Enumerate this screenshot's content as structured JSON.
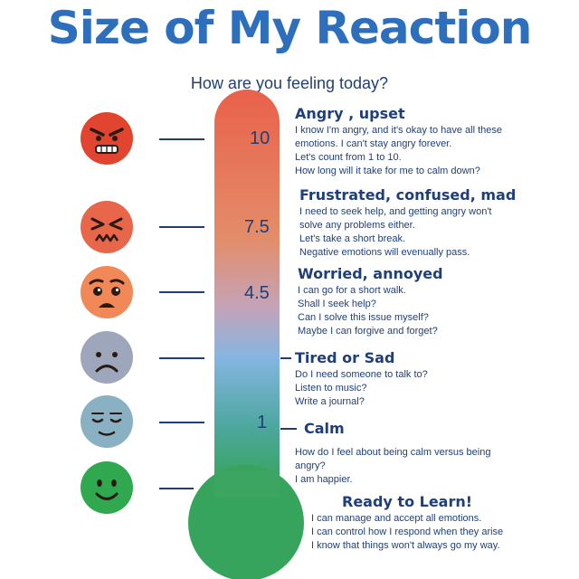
{
  "title": "Size of My Reaction",
  "subtitle": "How are you feeling today?",
  "levels": [
    {
      "number": "10",
      "face": "angry-face-icon",
      "heading": "Angry , upset",
      "lines": [
        "I know I'm angry, and it's okay to have all these",
        "emotions. I can't stay angry forever.",
        "Let's count from 1 to 10.",
        "How long will it take for me to calm down?"
      ]
    },
    {
      "number": "7.5",
      "face": "frustrated-face-icon",
      "heading": "Frustrated, confused, mad",
      "lines": [
        "I need to seek help, and getting angry won't",
        "solve any problems either.",
        "Let's take a short break.",
        "Negative emotions will evenually pass."
      ]
    },
    {
      "number": "4.5",
      "face": "worried-face-icon",
      "heading": "Worried, annoyed",
      "lines": [
        "I can go for a short walk.",
        "Shall I seek help?",
        "Can I solve this issue myself?",
        "Maybe I can forgive and forget?"
      ]
    },
    {
      "number": "",
      "face": "sad-face-icon",
      "heading": "Tired or Sad",
      "lines": [
        "Do I need someone to talk to?",
        "Listen to music?",
        "Write a journal?"
      ]
    },
    {
      "number": "1",
      "face": "calm-face-icon",
      "heading": "Calm",
      "lines": [
        "How do I feel about being calm versus being",
        "angry?",
        "I am happier."
      ]
    },
    {
      "number": "",
      "face": "smiling-face-icon",
      "heading": "Ready to Learn!",
      "lines": [
        "I can manage and accept all emotions.",
        "I can  control how I respond when they arise",
        "I know that things won't always go my way."
      ]
    }
  ],
  "colors": {
    "title": "#2d6fbd",
    "text": "#1f3f7a",
    "thermometer_top": "#e9614a",
    "thermometer_mid": "#7fb0e0",
    "thermometer_bottom": "#3aa75a",
    "face_angry": "#e2452f",
    "face_frustrated": "#e8664a",
    "face_worried": "#f08858",
    "face_sad": "#9ea6bb",
    "face_calm": "#8ab0c4",
    "face_happy": "#2fa84f"
  }
}
